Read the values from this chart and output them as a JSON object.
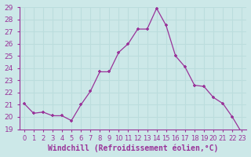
{
  "xlabel": "Windchill (Refroidissement éolien,°C)",
  "hours": [
    0,
    1,
    2,
    3,
    4,
    5,
    6,
    7,
    8,
    9,
    10,
    11,
    12,
    13,
    14,
    15,
    16,
    17,
    18,
    19,
    20,
    21,
    22,
    23
  ],
  "values": [
    21.1,
    20.3,
    20.4,
    20.1,
    20.1,
    19.7,
    21.0,
    22.1,
    23.7,
    23.7,
    25.3,
    26.0,
    27.2,
    27.2,
    28.9,
    27.5,
    25.0,
    24.1,
    22.6,
    22.5,
    21.6,
    21.1,
    20.0,
    18.7
  ],
  "line_color": "#993399",
  "marker": "+",
  "background_color": "#cce8e8",
  "grid_color": "#bbdddd",
  "ylim": [
    19,
    29
  ],
  "yticks": [
    19,
    20,
    21,
    22,
    23,
    24,
    25,
    26,
    27,
    28,
    29
  ],
  "xtick_labels": [
    "0",
    "1",
    "2",
    "3",
    "4",
    "5",
    "6",
    "7",
    "8",
    "9",
    "10",
    "11",
    "12",
    "13",
    "14",
    "15",
    "16",
    "17",
    "18",
    "19",
    "20",
    "21",
    "22",
    "23"
  ],
  "tick_color": "#993399",
  "label_color": "#993399",
  "label_fontsize": 7,
  "tick_fontsize": 6.5
}
